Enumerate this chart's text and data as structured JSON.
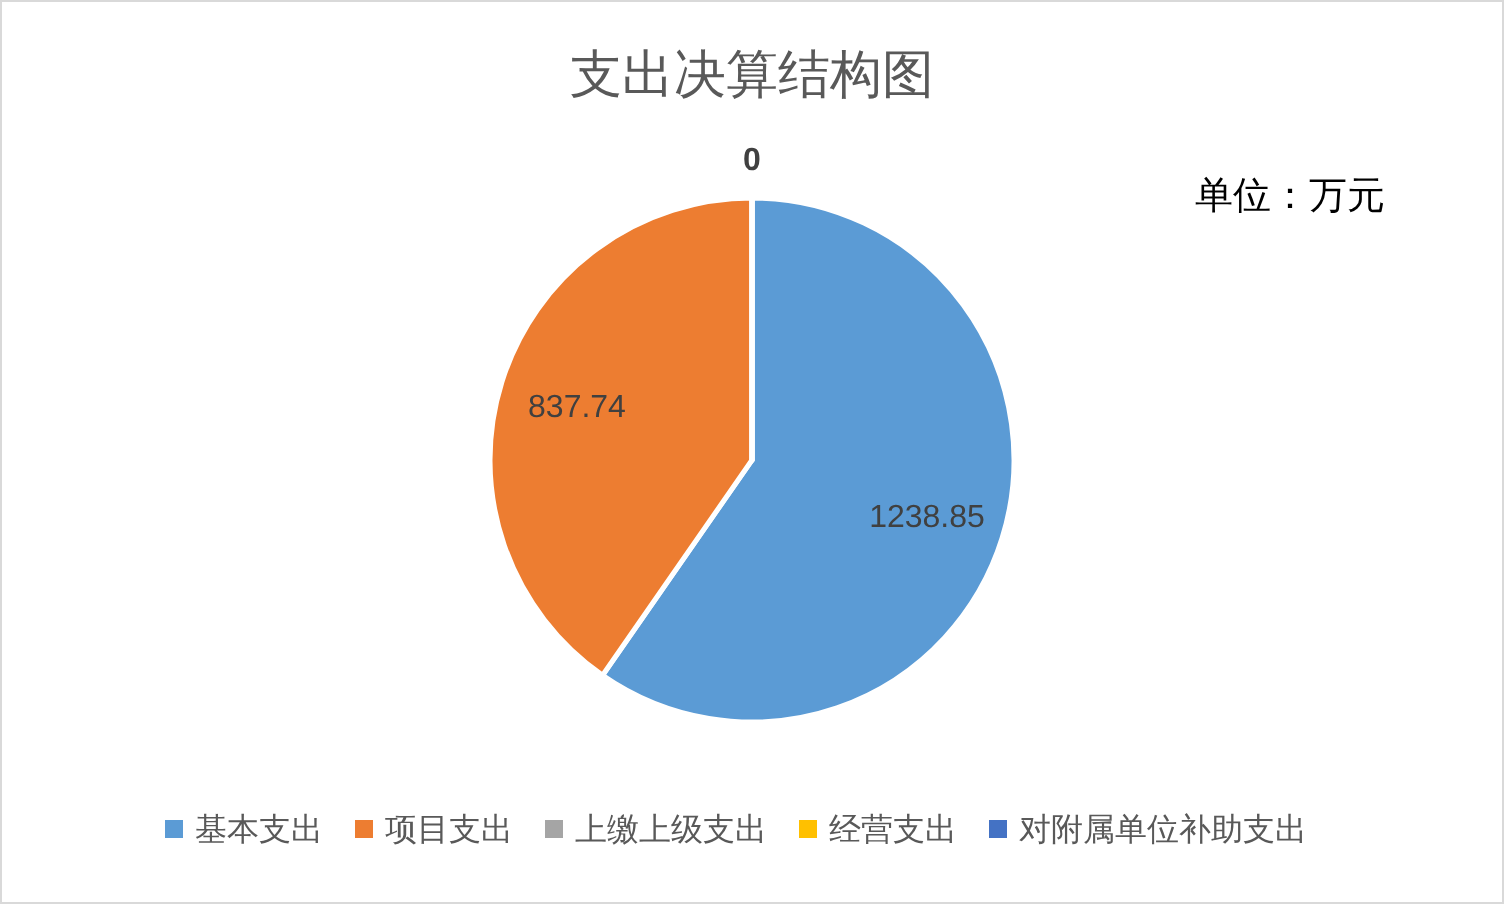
{
  "chart_data": {
    "type": "pie",
    "title": "支出决算结构图",
    "categories": [
      "基本支出",
      "项目支出",
      "上缴上级支出",
      "经营支出",
      "对附属单位补助支出"
    ],
    "values": [
      1238.85,
      837.74,
      0,
      0,
      0
    ],
    "colors": [
      "#5b9bd5",
      "#ed7d31",
      "#a5a5a5",
      "#ffc000",
      "#4472c4"
    ],
    "value_labels": [
      "1238.85",
      "837.74",
      "0",
      null,
      null
    ],
    "annotations": [
      "单位：万元"
    ],
    "legend": "bottom"
  }
}
